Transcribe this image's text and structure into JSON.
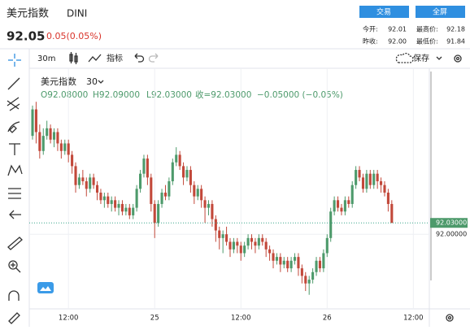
{
  "header": {
    "title": "美元指数",
    "symbol": "DINI",
    "price": "92.05",
    "change": "0.05(0.05%)",
    "buttons": [
      "交易",
      "全屏"
    ],
    "stats": [
      [
        "今开:",
        "92.01"
      ],
      [
        "最高价:",
        "92.18"
      ],
      [
        "昨收:",
        "92.00"
      ],
      [
        "最低价:",
        "91.84"
      ]
    ]
  },
  "toolbar": {
    "interval": "30m",
    "indicators": "指标",
    "save": "保存"
  },
  "legend": {
    "title": "美元指数",
    "interval": "30",
    "ohlc": [
      "O92.08000",
      "H92.09000",
      "L92.03000",
      "收=92.03000",
      "−0.05000 (−0.05%)"
    ]
  },
  "chart_data": {
    "type": "candlestick",
    "open": [
      92.26,
      92.33,
      92.27,
      92.22,
      92.26,
      92.28,
      92.25,
      92.27,
      92.24,
      92.22,
      92.24,
      92.21,
      92.18,
      92.13,
      92.15,
      92.14,
      92.12,
      92.15,
      92.13,
      92.11,
      92.09,
      92.1,
      92.08,
      92.09,
      92.07,
      92.08,
      92.06,
      92.07,
      92.05,
      92.07,
      92.12,
      92.16,
      92.2,
      92.15,
      92.08,
      92.03,
      92.08,
      92.11,
      92.1,
      92.14,
      92.19,
      92.21,
      92.18,
      92.15,
      92.17,
      92.13,
      92.1,
      92.12,
      92.09,
      92.07,
      92.08,
      92.04,
      92.01,
      91.99,
      92.0,
      91.98,
      91.96,
      91.98,
      91.97,
      91.95,
      91.97,
      91.99,
      91.98,
      91.97,
      91.99,
      91.98,
      91.96,
      91.95,
      91.93,
      91.94,
      91.92,
      91.93,
      91.91,
      91.93,
      91.94,
      91.91,
      91.89,
      91.87,
      91.88,
      91.9,
      91.93,
      91.91,
      91.95,
      91.99,
      92.06,
      92.09,
      92.07,
      92.06,
      92.09,
      92.08,
      92.13,
      92.17,
      92.15,
      92.12,
      92.16,
      92.13,
      92.16,
      92.14,
      92.13,
      92.11,
      92.08
    ],
    "high": [
      92.34,
      92.35,
      92.29,
      92.28,
      92.3,
      92.29,
      92.28,
      92.28,
      92.25,
      92.25,
      92.25,
      92.22,
      92.19,
      92.16,
      92.17,
      92.15,
      92.16,
      92.16,
      92.14,
      92.12,
      92.11,
      92.11,
      92.1,
      92.1,
      92.09,
      92.09,
      92.08,
      92.08,
      92.08,
      92.13,
      92.17,
      92.21,
      92.21,
      92.16,
      92.09,
      92.09,
      92.12,
      92.13,
      92.15,
      92.2,
      92.23,
      92.22,
      92.19,
      92.18,
      92.18,
      92.14,
      92.13,
      92.13,
      92.1,
      92.09,
      92.09,
      92.05,
      92.02,
      92.01,
      92.02,
      91.99,
      91.99,
      91.99,
      91.98,
      91.98,
      92.0,
      92.0,
      91.99,
      92.0,
      92.0,
      91.99,
      91.97,
      91.96,
      91.95,
      91.95,
      91.94,
      91.94,
      91.94,
      91.95,
      91.95,
      91.92,
      91.9,
      91.89,
      91.91,
      91.94,
      91.94,
      91.96,
      92.0,
      92.07,
      92.1,
      92.1,
      92.08,
      92.1,
      92.1,
      92.14,
      92.18,
      92.18,
      92.16,
      92.17,
      92.17,
      92.17,
      92.17,
      92.15,
      92.14,
      92.12,
      92.09
    ],
    "low": [
      92.25,
      92.24,
      92.2,
      92.21,
      92.25,
      92.24,
      92.23,
      92.22,
      92.2,
      92.21,
      92.19,
      92.16,
      92.11,
      92.12,
      92.13,
      92.1,
      92.11,
      92.12,
      92.09,
      92.08,
      92.07,
      92.07,
      92.06,
      92.06,
      92.05,
      92.05,
      92.05,
      92.04,
      92.04,
      92.06,
      92.11,
      92.15,
      92.13,
      92.06,
      91.99,
      92.02,
      92.07,
      92.09,
      92.09,
      92.13,
      92.18,
      92.17,
      92.13,
      92.14,
      92.11,
      92.08,
      92.09,
      92.07,
      92.03,
      92.05,
      92.02,
      91.98,
      91.96,
      91.95,
      91.97,
      91.94,
      91.95,
      91.95,
      91.93,
      91.94,
      91.96,
      91.96,
      91.95,
      91.96,
      91.97,
      91.94,
      91.93,
      91.91,
      91.92,
      91.9,
      91.91,
      91.9,
      91.9,
      91.92,
      91.89,
      91.87,
      91.85,
      91.84,
      91.87,
      91.89,
      91.9,
      91.9,
      91.94,
      91.98,
      92.05,
      92.06,
      92.05,
      92.05,
      92.07,
      92.07,
      92.12,
      92.14,
      92.11,
      92.11,
      92.12,
      92.12,
      92.12,
      92.11,
      92.1,
      92.06,
      92.03
    ],
    "close": [
      92.33,
      92.27,
      92.22,
      92.26,
      92.28,
      92.25,
      92.27,
      92.24,
      92.22,
      92.24,
      92.21,
      92.18,
      92.13,
      92.15,
      92.14,
      92.12,
      92.15,
      92.13,
      92.11,
      92.09,
      92.1,
      92.08,
      92.09,
      92.07,
      92.08,
      92.06,
      92.07,
      92.05,
      92.07,
      92.12,
      92.16,
      92.2,
      92.15,
      92.08,
      92.03,
      92.08,
      92.11,
      92.1,
      92.14,
      92.19,
      92.21,
      92.18,
      92.15,
      92.17,
      92.13,
      92.1,
      92.12,
      92.09,
      92.07,
      92.08,
      92.04,
      92.01,
      91.99,
      92.0,
      91.98,
      91.96,
      91.98,
      91.97,
      91.95,
      91.97,
      91.99,
      91.98,
      91.97,
      91.99,
      91.98,
      91.96,
      91.95,
      91.93,
      91.94,
      91.92,
      91.93,
      91.91,
      91.93,
      91.94,
      91.91,
      91.89,
      91.87,
      91.88,
      91.9,
      91.93,
      91.91,
      91.95,
      91.99,
      92.06,
      92.09,
      92.07,
      92.06,
      92.09,
      92.08,
      92.13,
      92.17,
      92.15,
      92.12,
      92.16,
      92.13,
      92.16,
      92.14,
      92.13,
      92.11,
      92.08,
      92.03
    ],
    "up_color": "#4d9a6b",
    "down_color": "#c2483a",
    "xlim": [
      0,
      110
    ],
    "xticks": [
      {
        "value": 10,
        "label": "12:00"
      },
      {
        "value": 34,
        "label": "25"
      },
      {
        "value": 58,
        "label": "12:00"
      },
      {
        "value": 82,
        "label": "26"
      },
      {
        "value": 106,
        "label": "12:00"
      }
    ],
    "ylim": [
      91.82,
      92.43
    ],
    "yticks": [
      {
        "value": 92,
        "label": "92.00000"
      }
    ],
    "last_price": {
      "value": 92.03,
      "label": "92.03000"
    },
    "grid": true
  }
}
